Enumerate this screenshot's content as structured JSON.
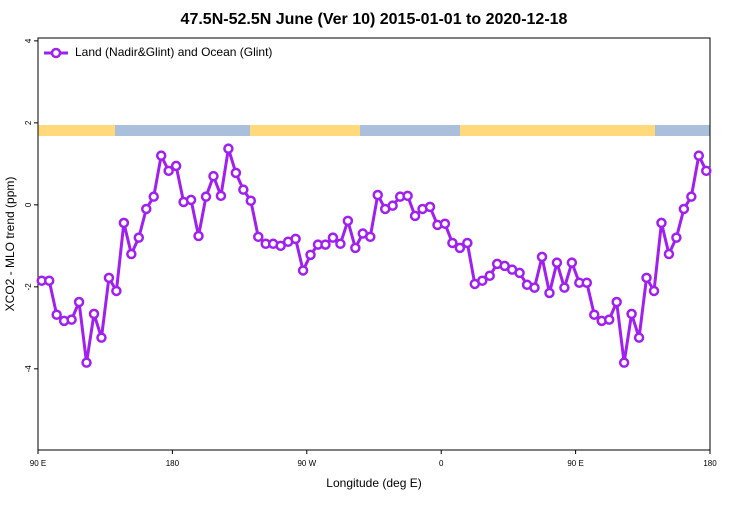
{
  "chart_data": {
    "type": "line",
    "title": "47.5N-52.5N June (Ver 10)   2015-01-01 to 2020-12-18",
    "xlabel": "Longitude (deg E)",
    "ylabel": "XCO2 - MLO trend (ppm)",
    "x": [
      92.5,
      97.5,
      102.5,
      107.5,
      112.5,
      117.5,
      122.5,
      127.5,
      132.5,
      137.5,
      142.5,
      147.5,
      152.5,
      157.5,
      162.5,
      167.5,
      172.5,
      177.5,
      182.5,
      187.5,
      192.5,
      197.5,
      202.5,
      207.5,
      212.5,
      217.5,
      222.5,
      227.5,
      232.5,
      237.5,
      242.5,
      247.5,
      252.5,
      257.5,
      262.5,
      267.5,
      272.5,
      277.5,
      282.5,
      287.5,
      292.5,
      297.5,
      302.5,
      307.5,
      312.5,
      317.5,
      322.5,
      327.5,
      332.5,
      337.5,
      342.5,
      347.5,
      352.5,
      357.5,
      362.5,
      367.5,
      372.5,
      377.5,
      382.5,
      387.5,
      392.5,
      397.5,
      402.5,
      407.5,
      412.5,
      417.5,
      422.5,
      427.5,
      432.5,
      437.5,
      442.5,
      447.5,
      452.5,
      457.5,
      462.5,
      467.5,
      472.5,
      477.5,
      482.5,
      487.5,
      492.5,
      497.5,
      502.5,
      507.5,
      512.5,
      517.5,
      522.5,
      527.5,
      532.5,
      537.5
    ],
    "series": [
      {
        "name": "Land (Nadir&Glint) and Ocean (Glint)",
        "color": "#a020f0",
        "values": [
          -1.85,
          -1.85,
          -2.68,
          -2.83,
          -2.8,
          -2.37,
          -3.85,
          -2.66,
          -3.24,
          -1.78,
          -2.1,
          -0.44,
          -1.2,
          -0.8,
          -0.1,
          0.2,
          1.2,
          0.83,
          0.95,
          0.07,
          0.12,
          -0.76,
          0.2,
          0.7,
          0.22,
          1.37,
          0.78,
          0.37,
          0.1,
          -0.78,
          -0.95,
          -0.95,
          -1.0,
          -0.9,
          -0.83,
          -1.6,
          -1.22,
          -0.97,
          -0.97,
          -0.8,
          -0.95,
          -0.39,
          -1.05,
          -0.7,
          -0.78,
          0.24,
          -0.1,
          -0.02,
          0.2,
          0.22,
          -0.27,
          -0.1,
          -0.05,
          -0.49,
          -0.46,
          -0.93,
          -1.05,
          -0.93,
          -1.93,
          -1.85,
          -1.73,
          -1.44,
          -1.49,
          -1.58,
          -1.66,
          -1.95,
          -2.02,
          -1.27,
          -2.15,
          -1.41,
          -2.02,
          -1.41,
          -1.9,
          -1.9,
          -2.68,
          -2.83,
          -2.8,
          -2.37,
          -3.85,
          -2.66,
          -3.24,
          -1.78,
          -2.1,
          -0.44,
          -1.2,
          -0.8,
          -0.1,
          0.2,
          1.2,
          0.83
        ]
      }
    ],
    "xlim": [
      90,
      540
    ],
    "xticks": [
      {
        "value": 90,
        "label": "90 E"
      },
      180,
      {
        "value": 270,
        "label": "90 W"
      },
      {
        "value": 360,
        "label": "0"
      },
      {
        "value": 450,
        "label": "90 E"
      },
      {
        "value": 540,
        "label": "180"
      }
    ],
    "ylim": [
      -5.98,
      4.07
    ],
    "yticks": [
      4,
      2,
      0,
      -2,
      -4
    ]
  }
}
